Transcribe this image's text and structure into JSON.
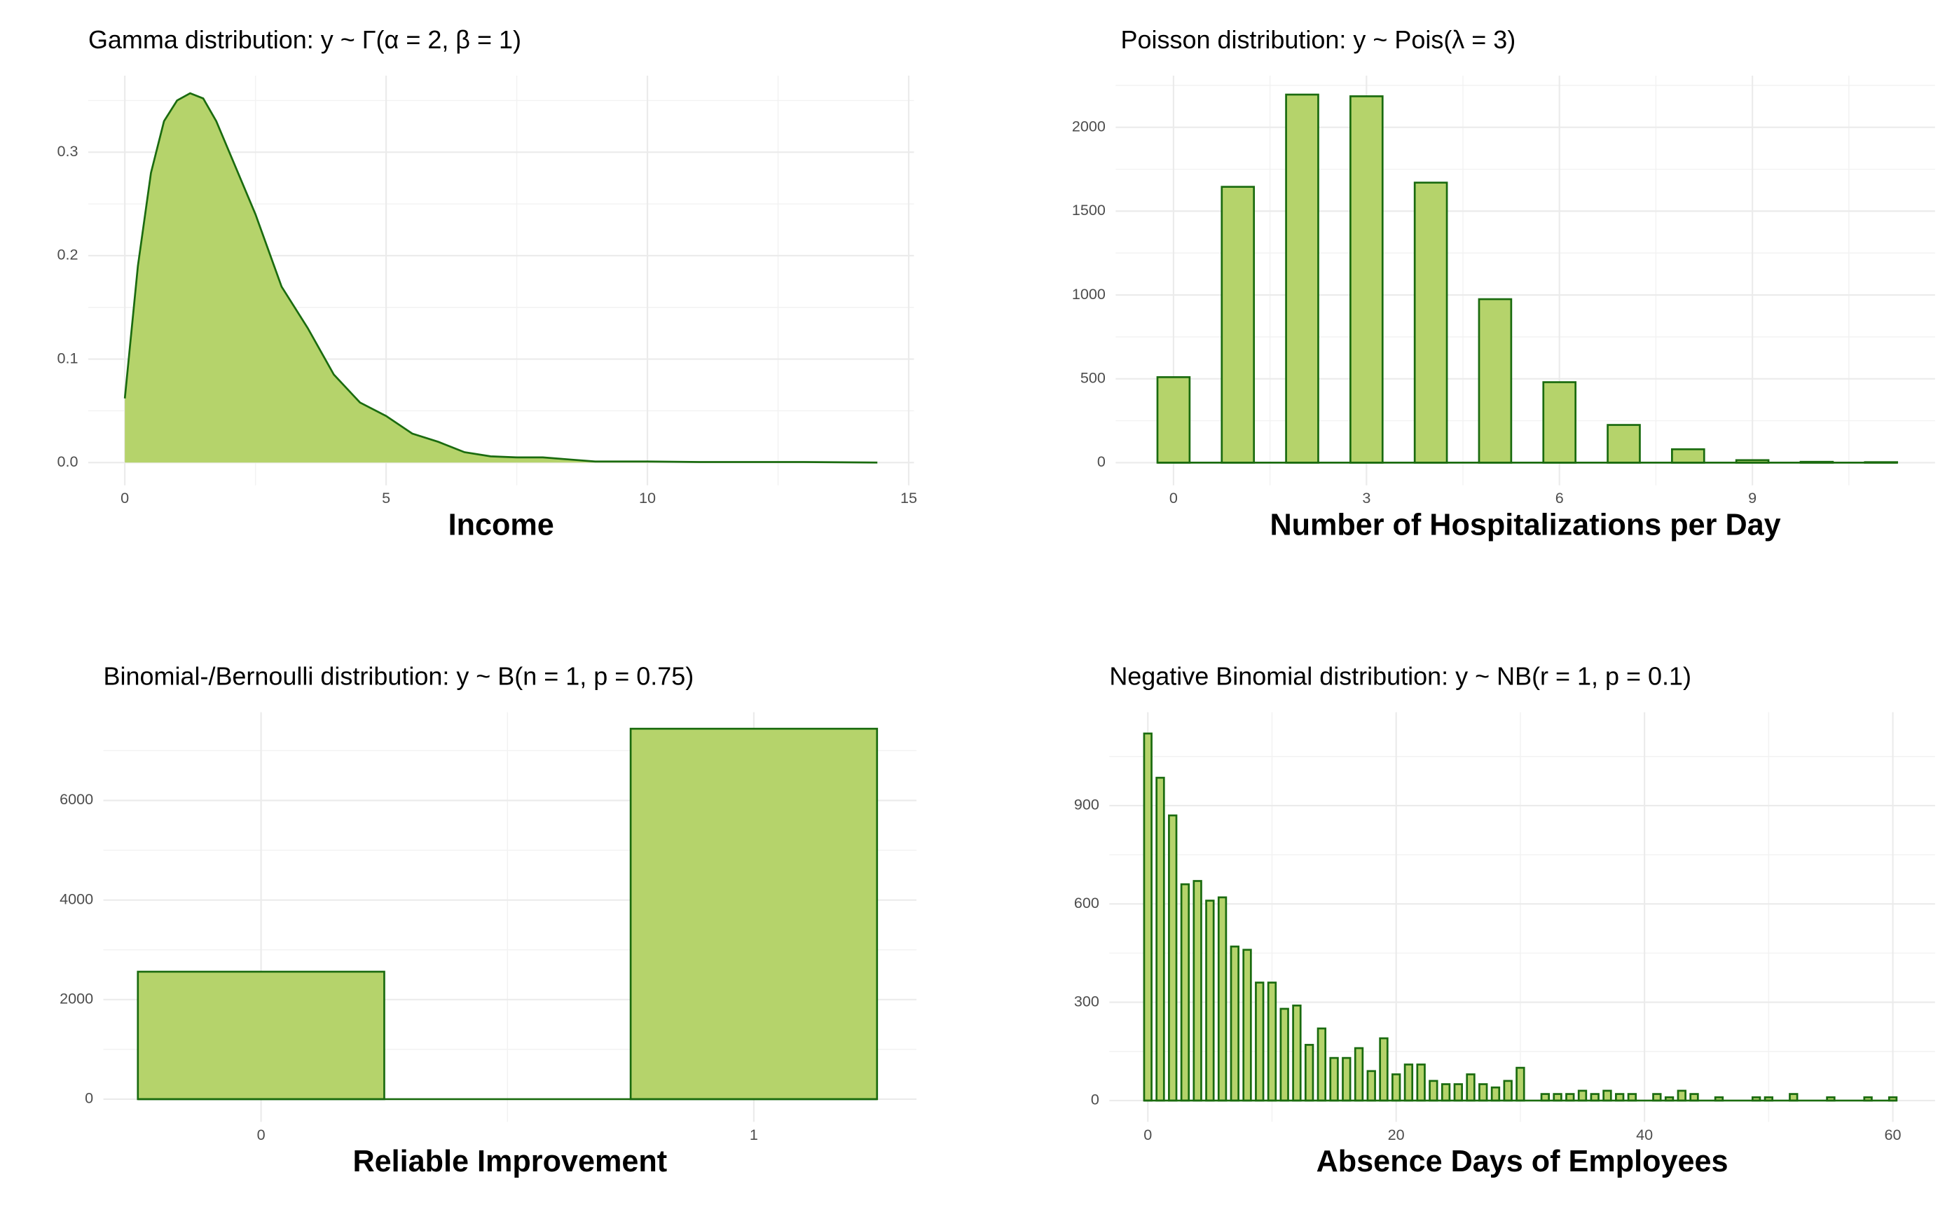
{
  "chart_data": [
    {
      "type": "area",
      "title": "Gamma distribution: y ~ Γ(α = 2, β = 1)",
      "x_label": "Income",
      "x": [
        0,
        0.25,
        0.5,
        0.75,
        1.0,
        1.25,
        1.5,
        1.75,
        2.0,
        2.5,
        3.0,
        3.5,
        4.0,
        4.5,
        5.0,
        5.5,
        6.0,
        6.5,
        7.0,
        7.5,
        8.0,
        8.5,
        9,
        10,
        11,
        12,
        13,
        14.4
      ],
      "values": [
        0.062,
        0.19,
        0.28,
        0.33,
        0.35,
        0.357,
        0.352,
        0.33,
        0.3,
        0.24,
        0.17,
        0.13,
        0.085,
        0.058,
        0.045,
        0.028,
        0.02,
        0.01,
        0.006,
        0.005,
        0.005,
        0.003,
        0.001,
        0.001,
        0.0005,
        0.0005,
        0.0005,
        0
      ],
      "color": "#b5d36b",
      "edgecolor": "#1a6b0f",
      "xlim": [
        -0.7,
        15.1
      ],
      "xticks": [
        0,
        5,
        10,
        15
      ],
      "ylim": [
        -0.022,
        0.374
      ],
      "yticks": [
        {
          "value": 0,
          "label": "0.0"
        },
        0.1,
        0.2,
        0.3
      ],
      "grid": true
    },
    {
      "type": "bar",
      "title": "Poisson distribution: y ~ Pois(λ = 3)",
      "x_label": "Number of Hospitalizations per Day",
      "x": [
        0,
        1,
        2,
        3,
        4,
        5,
        6,
        7,
        8,
        9,
        10,
        11
      ],
      "values": [
        510,
        1645,
        2195,
        2185,
        1670,
        975,
        480,
        225,
        80,
        15,
        5,
        3
      ],
      "color": "#b5d36b",
      "edgecolor": "#1a6b0f",
      "xlim": [
        -0.9,
        11.84
      ],
      "xticks": [
        0,
        3,
        6,
        9
      ],
      "ylim": [
        -135,
        2308
      ],
      "yticks": [
        0,
        500,
        1000,
        1500,
        2000
      ],
      "grid": true
    },
    {
      "type": "bar",
      "title": "Binomial-/Bernoulli distribution: y ~ B(n = 1, p = 0.75)",
      "x_label": "Reliable Improvement",
      "x": [
        0,
        1
      ],
      "values": [
        2560,
        7440
      ],
      "color": "#b5d36b",
      "edgecolor": "#1a6b0f",
      "xlim": [
        -0.32,
        1.33
      ],
      "xticks": [
        0,
        1
      ],
      "ylim": [
        -456,
        7772
      ],
      "yticks": [
        0,
        2000,
        4000,
        6000
      ],
      "grid": true
    },
    {
      "type": "bar",
      "title": "Negative Binomial distribution: y ~ NB(r = 1, p = 0.1)",
      "x_label": "Absence Days of Employees",
      "x": [
        0,
        1,
        2,
        3,
        4,
        5,
        6,
        7,
        8,
        9,
        10,
        11,
        12,
        13,
        14,
        15,
        16,
        17,
        18,
        19,
        20,
        21,
        22,
        23,
        24,
        25,
        26,
        27,
        28,
        29,
        30,
        31,
        32,
        33,
        34,
        35,
        36,
        37,
        38,
        39,
        40,
        41,
        42,
        43,
        44,
        45,
        46,
        47,
        48,
        49,
        50,
        51,
        52,
        53,
        54,
        55,
        56,
        57,
        58,
        59,
        60
      ],
      "values": [
        1120,
        985,
        870,
        660,
        670,
        610,
        620,
        470,
        460,
        360,
        360,
        280,
        290,
        170,
        220,
        130,
        130,
        160,
        90,
        190,
        80,
        110,
        110,
        60,
        50,
        50,
        80,
        50,
        40,
        60,
        100,
        0,
        20,
        20,
        20,
        30,
        20,
        30,
        20,
        20,
        0,
        20,
        10,
        30,
        20,
        0,
        10,
        0,
        0,
        10,
        10,
        0,
        20,
        0,
        0,
        10,
        0,
        0,
        10,
        0,
        10
      ],
      "color": "#b5d36b",
      "edgecolor": "#1a6b0f",
      "xlim": [
        -3.1,
        63.4
      ],
      "xticks": [
        0,
        20,
        40,
        60
      ],
      "ylim": [
        -65,
        1185
      ],
      "yticks": [
        0,
        300,
        600,
        900
      ],
      "grid": true
    }
  ]
}
